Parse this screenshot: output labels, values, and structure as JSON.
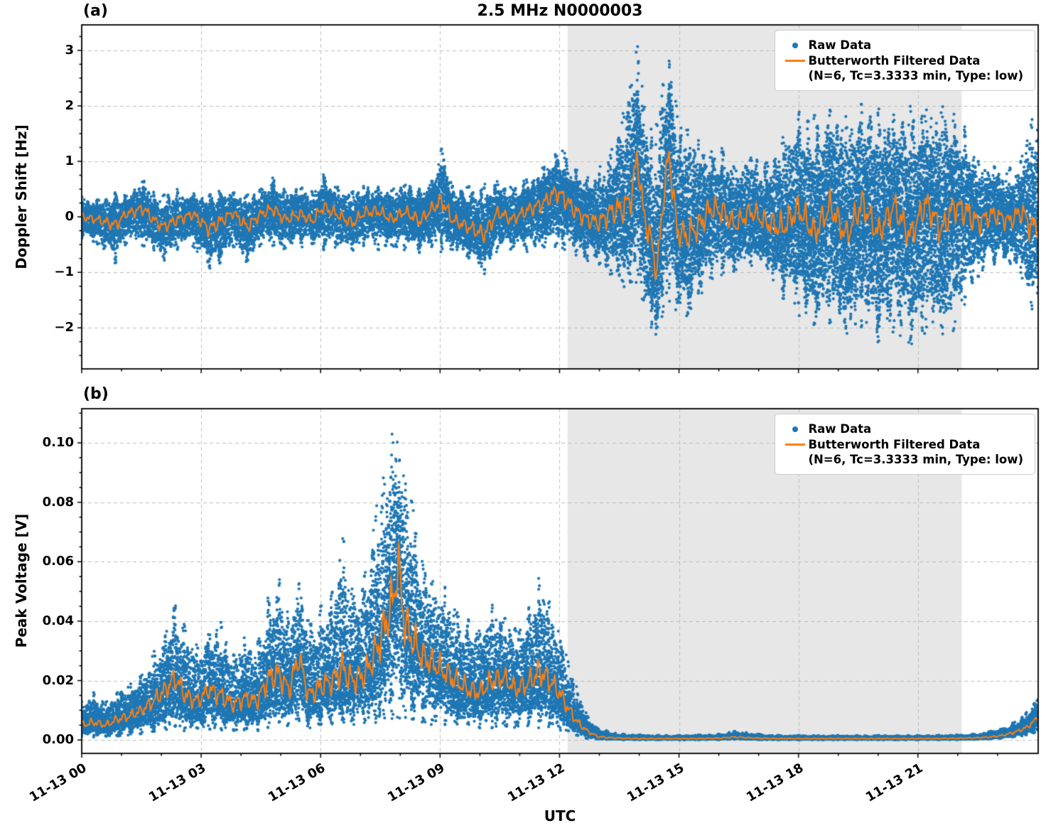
{
  "title": "2.5 MHz N0000003",
  "xlabel": "UTC",
  "legend": {
    "raw": "Raw Data",
    "filtered": "Butterworth Filtered Data",
    "filtered_params": "(N=6, Tc=3.3333 min, Type: low)"
  },
  "colors": {
    "raw": "#1f77b4",
    "filtered": "#ff7f0e",
    "shade": "#e7e7e7",
    "grid": "#bdbdbd"
  },
  "axes": {
    "xlim": [
      0,
      24.02
    ],
    "xtick_hours": [
      0,
      3,
      6,
      9,
      12,
      15,
      18,
      21
    ],
    "xtick_labels": [
      "11-13 00",
      "11-13 03",
      "11-13 06",
      "11-13 09",
      "11-13 12",
      "11-13 15",
      "11-13 18",
      "11-13 21"
    ],
    "shaded_region_hours": [
      12.2,
      22.1
    ]
  },
  "chart_data": [
    {
      "type": "scatter+line",
      "panel_label": "(a)",
      "ylabel": "Doppler Shift [Hz]",
      "ylim": [
        -2.74,
        3.46
      ],
      "ytick_values": [
        -2,
        -1,
        0,
        1,
        2,
        3
      ],
      "ytick_labels": [
        "−2",
        "−1",
        "0",
        "1",
        "2",
        "3"
      ],
      "y_minor_step": 0.25,
      "series_names": [
        "Raw Data",
        "Butterworth Filtered Data (N=6, Tc=3.3333 min, Type: low)"
      ],
      "hours": [
        0.0,
        0.4,
        0.85,
        1.1,
        1.55,
        1.8,
        2.05,
        2.4,
        2.8,
        3.2,
        3.45,
        3.8,
        4.15,
        4.5,
        4.8,
        5.1,
        5.5,
        5.8,
        6.05,
        6.4,
        6.8,
        7.1,
        7.45,
        7.8,
        8.1,
        8.5,
        8.8,
        9.05,
        9.3,
        9.7,
        10.1,
        10.45,
        10.8,
        11.2,
        11.6,
        11.9,
        12.1,
        12.4,
        12.7,
        13.0,
        13.3,
        13.6,
        13.8,
        13.95,
        14.1,
        14.3,
        14.45,
        14.6,
        14.75,
        14.95,
        15.2,
        15.5,
        15.8,
        16.1,
        16.4,
        16.8,
        17.2,
        17.6,
        18.0,
        18.4,
        18.8,
        19.2,
        19.6,
        20.0,
        20.4,
        20.8,
        21.2,
        21.6,
        21.9,
        22.2,
        22.5,
        22.9,
        23.3,
        23.6,
        23.85,
        24.0
      ],
      "raw_hi": [
        0.38,
        0.32,
        0.45,
        0.4,
        0.68,
        0.45,
        0.4,
        0.5,
        0.42,
        0.45,
        0.5,
        0.45,
        0.4,
        0.5,
        0.72,
        0.5,
        0.55,
        0.45,
        0.78,
        0.55,
        0.5,
        0.6,
        0.55,
        0.5,
        0.6,
        0.55,
        0.65,
        1.3,
        0.6,
        0.55,
        0.6,
        0.65,
        0.55,
        0.7,
        0.9,
        1.15,
        1.2,
        0.9,
        0.75,
        0.9,
        1.2,
        1.9,
        2.6,
        3.15,
        2.2,
        1.6,
        1.7,
        2.5,
        2.9,
        2.0,
        1.7,
        1.4,
        1.2,
        1.25,
        0.95,
        1.15,
        1.0,
        1.5,
        1.9,
        1.85,
        2.0,
        1.9,
        2.1,
        1.95,
        1.9,
        2.0,
        1.95,
        2.05,
        1.9,
        1.6,
        1.1,
        0.95,
        0.9,
        1.05,
        1.95,
        1.6
      ],
      "raw_lo": [
        -0.4,
        -0.5,
        -0.85,
        -0.5,
        -0.55,
        -0.6,
        -0.8,
        -0.6,
        -0.55,
        -0.95,
        -0.9,
        -0.55,
        -0.88,
        -0.5,
        -0.55,
        -0.6,
        -0.55,
        -0.5,
        -0.6,
        -0.55,
        -0.65,
        -0.55,
        -0.6,
        -0.55,
        -0.6,
        -0.65,
        -0.55,
        -0.65,
        -0.6,
        -0.75,
        -1.05,
        -0.6,
        -0.6,
        -0.65,
        -0.6,
        -0.55,
        -0.6,
        -0.7,
        -0.8,
        -0.9,
        -1.1,
        -1.3,
        -1.35,
        -1.2,
        -1.6,
        -2.0,
        -2.15,
        -1.8,
        -1.6,
        -1.7,
        -1.9,
        -1.5,
        -1.2,
        -1.05,
        -1.0,
        -0.9,
        -1.0,
        -1.5,
        -1.8,
        -2.0,
        -1.95,
        -2.2,
        -2.05,
        -2.3,
        -2.15,
        -2.4,
        -2.1,
        -2.2,
        -2.05,
        -1.6,
        -1.1,
        -0.9,
        -0.85,
        -1.1,
        -1.7,
        -1.4
      ],
      "filtered": [
        0.0,
        -0.05,
        -0.15,
        0.05,
        0.15,
        -0.05,
        -0.18,
        -0.05,
        0.05,
        -0.22,
        -0.1,
        0.08,
        -0.18,
        0.05,
        0.15,
        -0.05,
        0.05,
        -0.08,
        0.18,
        0.05,
        -0.12,
        0.08,
        0.1,
        -0.05,
        0.1,
        -0.08,
        0.15,
        0.3,
        -0.05,
        -0.18,
        -0.32,
        0.08,
        -0.05,
        0.12,
        0.25,
        0.45,
        0.35,
        0.1,
        -0.05,
        -0.1,
        0.1,
        0.15,
        0.35,
        1.1,
        0.1,
        -0.45,
        -1.0,
        0.3,
        1.15,
        -0.25,
        -0.35,
        -0.15,
        0.15,
        0.1,
        -0.15,
        0.1,
        -0.1,
        -0.2,
        0.15,
        -0.3,
        0.2,
        -0.35,
        0.25,
        -0.3,
        0.2,
        -0.35,
        0.25,
        -0.25,
        0.2,
        0.1,
        -0.1,
        0.05,
        -0.08,
        0.1,
        -0.2,
        -0.1
      ]
    },
    {
      "type": "scatter+line",
      "panel_label": "(b)",
      "ylabel": "Peak Voltage [V]",
      "ylim": [
        -0.0045,
        0.1115
      ],
      "ytick_values": [
        0,
        0.02,
        0.04,
        0.06,
        0.08,
        0.1
      ],
      "ytick_labels": [
        "0.00",
        "0.02",
        "0.04",
        "0.06",
        "0.08",
        "0.10"
      ],
      "y_minor_step": 0.005,
      "series_names": [
        "Raw Data",
        "Butterworth Filtered Data (N=6, Tc=3.3333 min, Type: low)"
      ],
      "hours": [
        0.0,
        0.3,
        0.6,
        0.9,
        1.2,
        1.5,
        1.8,
        2.1,
        2.35,
        2.6,
        2.9,
        3.2,
        3.5,
        3.8,
        4.1,
        4.4,
        4.7,
        4.95,
        5.2,
        5.45,
        5.7,
        6.0,
        6.3,
        6.55,
        6.8,
        7.1,
        7.4,
        7.6,
        7.8,
        7.95,
        8.1,
        8.3,
        8.55,
        8.8,
        9.1,
        9.4,
        9.7,
        10.0,
        10.3,
        10.6,
        10.9,
        11.2,
        11.5,
        11.75,
        12.0,
        12.2,
        12.45,
        12.7,
        12.95,
        13.2,
        13.6,
        14.0,
        14.5,
        15.0,
        15.5,
        16.0,
        16.4,
        16.7,
        17.0,
        17.5,
        18.0,
        18.5,
        19.0,
        19.5,
        20.0,
        20.5,
        21.0,
        21.5,
        22.0,
        22.4,
        22.8,
        23.1,
        23.4,
        23.7,
        23.9,
        24.0
      ],
      "raw_hi": [
        0.013,
        0.016,
        0.013,
        0.017,
        0.019,
        0.022,
        0.03,
        0.036,
        0.048,
        0.038,
        0.032,
        0.036,
        0.04,
        0.03,
        0.035,
        0.032,
        0.05,
        0.055,
        0.042,
        0.055,
        0.04,
        0.046,
        0.05,
        0.07,
        0.052,
        0.056,
        0.08,
        0.09,
        0.105,
        0.1,
        0.092,
        0.08,
        0.062,
        0.056,
        0.052,
        0.046,
        0.042,
        0.038,
        0.046,
        0.042,
        0.038,
        0.044,
        0.056,
        0.048,
        0.036,
        0.028,
        0.017,
        0.008,
        0.004,
        0.003,
        0.002,
        0.0018,
        0.0016,
        0.0016,
        0.0018,
        0.002,
        0.003,
        0.0025,
        0.002,
        0.0016,
        0.0016,
        0.0015,
        0.0016,
        0.0015,
        0.0016,
        0.0015,
        0.0016,
        0.0016,
        0.0018,
        0.002,
        0.003,
        0.004,
        0.006,
        0.009,
        0.012,
        0.014
      ],
      "raw_lo": [
        0.001,
        0.001,
        0.001,
        0.001,
        0.0015,
        0.002,
        0.002,
        0.003,
        0.003,
        0.003,
        0.003,
        0.003,
        0.003,
        0.003,
        0.003,
        0.003,
        0.004,
        0.004,
        0.004,
        0.004,
        0.004,
        0.004,
        0.004,
        0.005,
        0.005,
        0.005,
        0.005,
        0.006,
        0.007,
        0.007,
        0.006,
        0.006,
        0.005,
        0.005,
        0.005,
        0.004,
        0.004,
        0.004,
        0.004,
        0.004,
        0.004,
        0.004,
        0.004,
        0.004,
        0.003,
        0.002,
        0.001,
        0.0005,
        0.0002,
        0.0002,
        0.0001,
        0.0001,
        0.0001,
        0.0001,
        0.0001,
        0.0001,
        0.0002,
        0.0002,
        0.0001,
        0.0001,
        0.0001,
        0.0001,
        0.0001,
        0.0001,
        0.0001,
        0.0001,
        0.0001,
        0.0001,
        0.0001,
        0.0002,
        0.0003,
        0.0005,
        0.001,
        0.0015,
        0.002,
        0.003
      ],
      "filtered": [
        0.005,
        0.006,
        0.005,
        0.007,
        0.008,
        0.01,
        0.013,
        0.017,
        0.021,
        0.015,
        0.013,
        0.017,
        0.015,
        0.012,
        0.014,
        0.013,
        0.021,
        0.022,
        0.017,
        0.028,
        0.015,
        0.018,
        0.02,
        0.024,
        0.02,
        0.022,
        0.03,
        0.038,
        0.046,
        0.059,
        0.04,
        0.034,
        0.028,
        0.026,
        0.023,
        0.02,
        0.017,
        0.016,
        0.02,
        0.021,
        0.017,
        0.019,
        0.023,
        0.02,
        0.016,
        0.011,
        0.006,
        0.003,
        0.0012,
        0.0008,
        0.0006,
        0.0005,
        0.0005,
        0.0005,
        0.0005,
        0.0006,
        0.001,
        0.0008,
        0.0006,
        0.0005,
        0.0005,
        0.0005,
        0.0005,
        0.0005,
        0.0005,
        0.0005,
        0.0005,
        0.0005,
        0.0006,
        0.0007,
        0.001,
        0.0015,
        0.0025,
        0.004,
        0.006,
        0.008
      ]
    }
  ]
}
